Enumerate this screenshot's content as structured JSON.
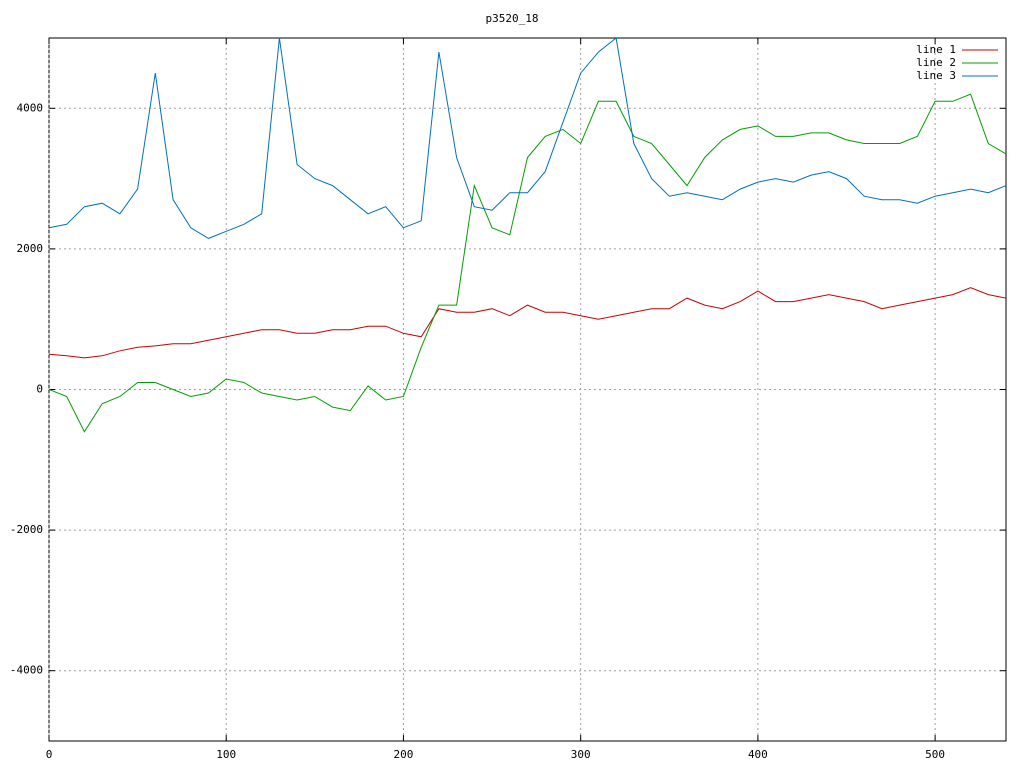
{
  "chart_data": {
    "type": "line",
    "title": "p3520_18",
    "x": [
      0,
      10,
      20,
      30,
      40,
      50,
      60,
      70,
      80,
      90,
      100,
      110,
      120,
      130,
      140,
      150,
      160,
      170,
      180,
      190,
      200,
      210,
      220,
      230,
      240,
      250,
      260,
      270,
      280,
      290,
      300,
      310,
      320,
      330,
      340,
      350,
      360,
      370,
      380,
      390,
      400,
      410,
      420,
      430,
      440,
      450,
      460,
      470,
      480,
      490,
      500,
      510,
      520,
      530,
      540
    ],
    "series": [
      {
        "name": "line 1",
        "color": "#cc0000",
        "values": [
          500,
          480,
          450,
          480,
          550,
          600,
          620,
          650,
          650,
          700,
          750,
          800,
          850,
          850,
          800,
          800,
          850,
          850,
          900,
          900,
          800,
          750,
          1150,
          1100,
          1100,
          1150,
          1050,
          1200,
          1100,
          1100,
          1050,
          1000,
          1050,
          1100,
          1150,
          1150,
          1300,
          1200,
          1150,
          1250,
          1400,
          1250,
          1250,
          1300,
          1350,
          1300,
          1250,
          1150,
          1200,
          1250,
          1300,
          1350,
          1450,
          1350,
          1300
        ]
      },
      {
        "name": "line 2",
        "color": "#00a000",
        "values": [
          0,
          -100,
          -600,
          -200,
          -100,
          100,
          100,
          0,
          -100,
          -50,
          150,
          100,
          -50,
          -100,
          -150,
          -100,
          -250,
          -300,
          50,
          -150,
          -100,
          600,
          1200,
          1200,
          2900,
          2300,
          2200,
          3300,
          3600,
          3700,
          3500,
          4100,
          4100,
          3600,
          3500,
          3200,
          2900,
          3300,
          3550,
          3700,
          3750,
          3600,
          3600,
          3650,
          3650,
          3550,
          3500,
          3500,
          3500,
          3600,
          4100,
          4100,
          4200,
          3500,
          3350
        ]
      },
      {
        "name": "line 3",
        "color": "#0070c0",
        "values": [
          2300,
          2350,
          2600,
          2650,
          2500,
          2850,
          4500,
          2700,
          2300,
          2150,
          2250,
          2350,
          2500,
          5000,
          3200,
          3000,
          2900,
          2700,
          2500,
          2600,
          2300,
          2400,
          4800,
          3300,
          2600,
          2550,
          2800,
          2800,
          3100,
          3800,
          4500,
          4800,
          5000,
          3500,
          3000,
          2750,
          2800,
          2750,
          2700,
          2850,
          2950,
          3000,
          2950,
          3050,
          3100,
          3000,
          2750,
          2700,
          2700,
          2650,
          2750,
          2800,
          2850,
          2800,
          2900
        ]
      }
    ],
    "xlim": [
      0,
      540
    ],
    "ylim": [
      -5000,
      5000
    ],
    "xticks": [
      0,
      100,
      200,
      300,
      400,
      500
    ],
    "yticks": [
      -4000,
      -2000,
      0,
      2000,
      4000
    ],
    "grid": true,
    "legend": "top-right"
  }
}
